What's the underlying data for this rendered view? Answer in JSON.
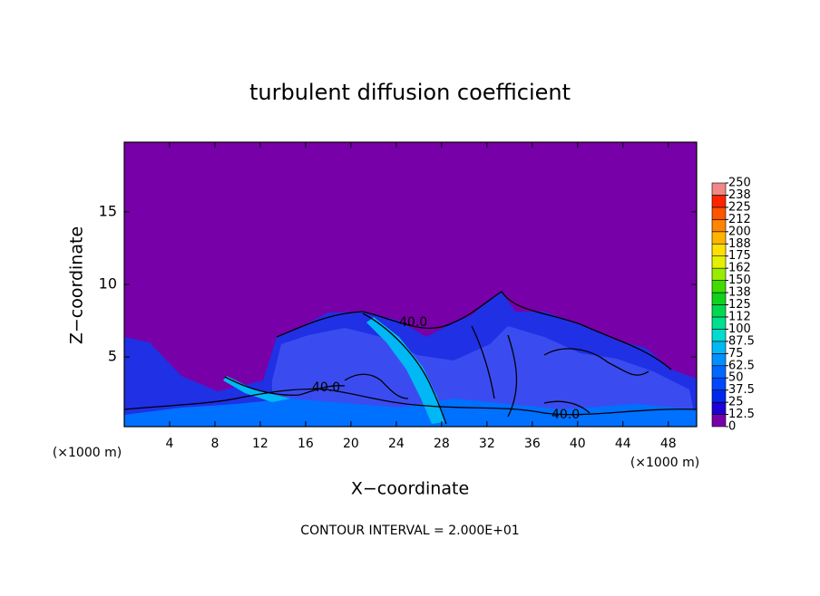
{
  "chart_data": {
    "type": "contour",
    "title": "turbulent diffusion coefficient",
    "xlabel": "X−coordinate",
    "ylabel": "Z−coordinate",
    "x_unit": "(×1000 m)",
    "y_unit": "(×1000 m)",
    "xlim": [
      0,
      50.5
    ],
    "ylim": [
      0.2,
      19.8
    ],
    "xticks": [
      4,
      8,
      12,
      16,
      20,
      24,
      28,
      32,
      36,
      40,
      44,
      48
    ],
    "yticks": [
      5,
      10,
      15
    ],
    "contour_labels": [
      "40.0",
      "40.0",
      "40.0"
    ],
    "note": "CONTOUR INTERVAL = 2.000E+01",
    "colorbar": {
      "ticks": [
        0,
        12.5,
        25,
        37.5,
        50,
        62.5,
        75,
        87.5,
        100,
        {
          "value": 112.5,
          "label": "112"
        },
        125,
        {
          "value": 137.5,
          "label": "138"
        },
        150,
        {
          "value": 162.5,
          "label": "162"
        },
        175,
        {
          "value": 187.5,
          "label": "188"
        },
        200,
        {
          "value": 212.5,
          "label": "212"
        },
        225,
        {
          "value": 237.5,
          "label": "238"
        },
        250
      ],
      "colors": [
        "#7800a8",
        "#1c00d4",
        "#0028ec",
        "#0048ff",
        "#0068ff",
        "#0090ff",
        "#00b8f4",
        "#00dcd0",
        "#00e090",
        "#00d850",
        "#10d020",
        "#40dc00",
        "#98ec00",
        "#e4f000",
        "#ffe000",
        "#ffb400",
        "#ff8400",
        "#ff5400",
        "#ff2400",
        "#f08888"
      ]
    }
  }
}
